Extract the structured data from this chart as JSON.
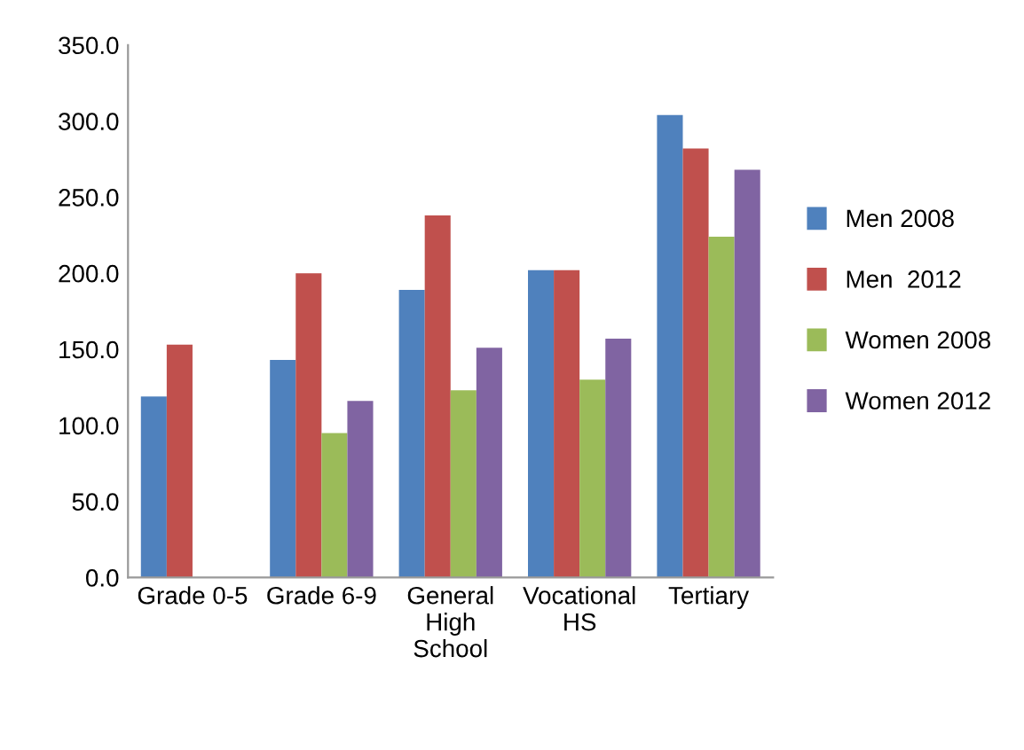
{
  "chart_data": {
    "type": "bar",
    "categories": [
      "Grade 0-5",
      "Grade 6-9",
      "General\nHigh\nSchool",
      "Vocational\nHS",
      "Tertiary"
    ],
    "series": [
      {
        "name": "Men 2008",
        "color": "#4f81bd",
        "values": [
          119,
          143,
          189,
          202,
          304
        ]
      },
      {
        "name": "Men  2012",
        "color": "#c0504d",
        "values": [
          153,
          200,
          238,
          202,
          282
        ]
      },
      {
        "name": "Women 2008",
        "color": "#9bbb59",
        "values": [
          null,
          95,
          123,
          130,
          224
        ]
      },
      {
        "name": "Women 2012",
        "color": "#8064a2",
        "values": [
          null,
          116,
          151,
          157,
          268
        ]
      }
    ],
    "ylim": [
      0,
      350
    ],
    "yticks": [
      {
        "value": 0,
        "label": "0.0"
      },
      {
        "value": 50,
        "label": "50.0"
      },
      {
        "value": 100,
        "label": "100.0"
      },
      {
        "value": 150,
        "label": "150.0"
      },
      {
        "value": 200,
        "label": "200.0"
      },
      {
        "value": 250,
        "label": "250.0"
      },
      {
        "value": 300,
        "label": "300.0"
      },
      {
        "value": 350,
        "label": "350.0"
      }
    ],
    "grid": false,
    "legend": "right"
  }
}
